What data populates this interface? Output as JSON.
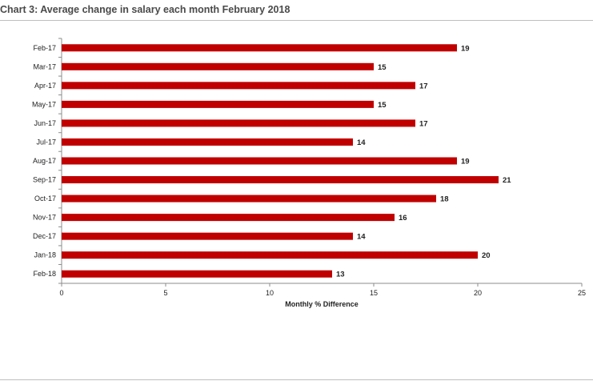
{
  "chart_data": {
    "type": "bar",
    "orientation": "horizontal",
    "title": "Chart 3: Average change in salary each month February 2018",
    "xlabel": "Monthly % Difference",
    "ylabel": "",
    "categories": [
      "Feb-17",
      "Mar-17",
      "Apr-17",
      "May-17",
      "Jun-17",
      "Jul-17",
      "Aug-17",
      "Sep-17",
      "Oct-17",
      "Nov-17",
      "Dec-17",
      "Jan-18",
      "Feb-18"
    ],
    "values": [
      19,
      15,
      17,
      15,
      17,
      14,
      19,
      21,
      18,
      16,
      14,
      20,
      13
    ],
    "xlim": [
      0,
      25
    ],
    "xticks": [
      0,
      5,
      10,
      15,
      20,
      25
    ],
    "bar_color": "#c00000",
    "grid": false,
    "data_labels": true
  }
}
